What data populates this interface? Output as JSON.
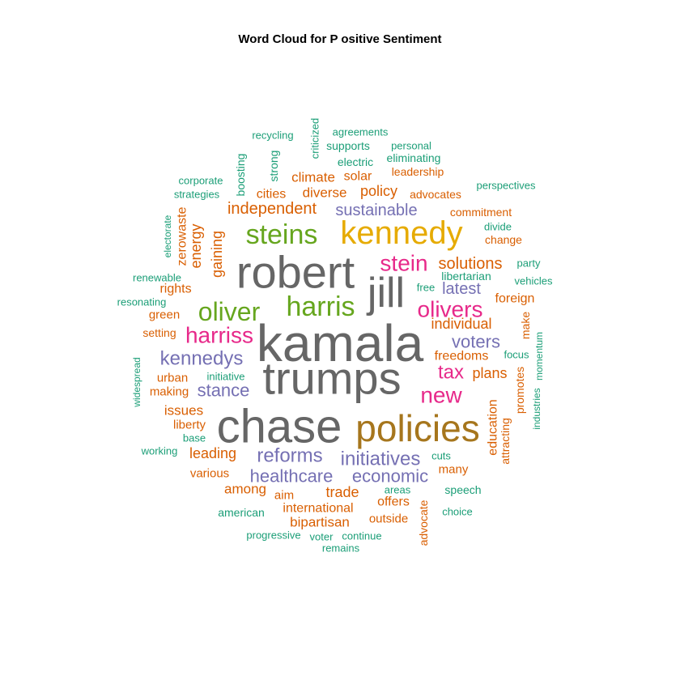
{
  "chart_data": {
    "type": "wordcloud",
    "title": "Word Cloud for P ositive Sentiment",
    "colors": {
      "grey": "#666666",
      "gold": "#E6AB02",
      "olive": "#A6761D",
      "green": "#66A61E",
      "magenta": "#E7298A",
      "purple": "#7570B3",
      "orange": "#D95F02",
      "teal": "#1B9E77"
    },
    "words": [
      {
        "text": "kamala",
        "color": "grey"
      },
      {
        "text": "chase",
        "color": "grey"
      },
      {
        "text": "trumps",
        "color": "grey"
      },
      {
        "text": "robert",
        "color": "grey"
      },
      {
        "text": "jill",
        "color": "grey"
      },
      {
        "text": "policies",
        "color": "olive"
      },
      {
        "text": "kennedy",
        "color": "gold"
      },
      {
        "text": "steins",
        "color": "green"
      },
      {
        "text": "harris",
        "color": "green"
      },
      {
        "text": "oliver",
        "color": "green"
      },
      {
        "text": "stein",
        "color": "magenta"
      },
      {
        "text": "olivers",
        "color": "magenta"
      },
      {
        "text": "harriss",
        "color": "magenta"
      },
      {
        "text": "new",
        "color": "magenta"
      },
      {
        "text": "tax",
        "color": "magenta"
      },
      {
        "text": "kennedys",
        "color": "purple"
      },
      {
        "text": "reforms",
        "color": "purple"
      },
      {
        "text": "initiatives",
        "color": "purple"
      },
      {
        "text": "healthcare",
        "color": "purple"
      },
      {
        "text": "economic",
        "color": "purple"
      },
      {
        "text": "voters",
        "color": "purple"
      },
      {
        "text": "stance",
        "color": "purple"
      },
      {
        "text": "sustainable",
        "color": "purple"
      },
      {
        "text": "latest",
        "color": "purple"
      },
      {
        "text": "independent",
        "color": "orange"
      },
      {
        "text": "solutions",
        "color": "orange"
      },
      {
        "text": "individual",
        "color": "orange"
      },
      {
        "text": "plans",
        "color": "orange"
      },
      {
        "text": "policy",
        "color": "orange"
      },
      {
        "text": "diverse",
        "color": "orange"
      },
      {
        "text": "climate",
        "color": "orange"
      },
      {
        "text": "solar",
        "color": "orange"
      },
      {
        "text": "cities",
        "color": "orange"
      },
      {
        "text": "freedoms",
        "color": "orange"
      },
      {
        "text": "foreign",
        "color": "orange"
      },
      {
        "text": "issues",
        "color": "orange"
      },
      {
        "text": "leading",
        "color": "orange"
      },
      {
        "text": "among",
        "color": "orange"
      },
      {
        "text": "trade",
        "color": "orange"
      },
      {
        "text": "international",
        "color": "orange"
      },
      {
        "text": "bipartisan",
        "color": "orange"
      },
      {
        "text": "offers",
        "color": "orange"
      },
      {
        "text": "outside",
        "color": "orange"
      },
      {
        "text": "many",
        "color": "orange"
      },
      {
        "text": "education",
        "color": "orange"
      },
      {
        "text": "gaining",
        "color": "orange"
      },
      {
        "text": "energy",
        "color": "orange"
      },
      {
        "text": "zerowaste",
        "color": "orange"
      },
      {
        "text": "rights",
        "color": "orange"
      },
      {
        "text": "green",
        "color": "orange"
      },
      {
        "text": "setting",
        "color": "orange"
      },
      {
        "text": "urban",
        "color": "orange"
      },
      {
        "text": "making",
        "color": "orange"
      },
      {
        "text": "liberty",
        "color": "orange"
      },
      {
        "text": "various",
        "color": "orange"
      },
      {
        "text": "aim",
        "color": "orange"
      },
      {
        "text": "advocate",
        "color": "orange"
      },
      {
        "text": "attracting",
        "color": "orange"
      },
      {
        "text": "promotes",
        "color": "orange"
      },
      {
        "text": "make",
        "color": "orange"
      },
      {
        "text": "commitment",
        "color": "orange"
      },
      {
        "text": "change",
        "color": "orange"
      },
      {
        "text": "leadership",
        "color": "orange"
      },
      {
        "text": "advocates",
        "color": "orange"
      },
      {
        "text": "recycling",
        "color": "teal"
      },
      {
        "text": "agreements",
        "color": "teal"
      },
      {
        "text": "criticized",
        "color": "teal"
      },
      {
        "text": "supports",
        "color": "teal"
      },
      {
        "text": "personal",
        "color": "teal"
      },
      {
        "text": "eliminating",
        "color": "teal"
      },
      {
        "text": "electric",
        "color": "teal"
      },
      {
        "text": "strong",
        "color": "teal"
      },
      {
        "text": "boosting",
        "color": "teal"
      },
      {
        "text": "corporate",
        "color": "teal"
      },
      {
        "text": "strategies",
        "color": "teal"
      },
      {
        "text": "perspectives",
        "color": "teal"
      },
      {
        "text": "divide",
        "color": "teal"
      },
      {
        "text": "electorate",
        "color": "teal"
      },
      {
        "text": "renewable",
        "color": "teal"
      },
      {
        "text": "resonating",
        "color": "teal"
      },
      {
        "text": "party",
        "color": "teal"
      },
      {
        "text": "vehicles",
        "color": "teal"
      },
      {
        "text": "libertarian",
        "color": "teal"
      },
      {
        "text": "free",
        "color": "teal"
      },
      {
        "text": "focus",
        "color": "teal"
      },
      {
        "text": "momentum",
        "color": "teal"
      },
      {
        "text": "industries",
        "color": "teal"
      },
      {
        "text": "widespread",
        "color": "teal"
      },
      {
        "text": "initiative",
        "color": "teal"
      },
      {
        "text": "base",
        "color": "teal"
      },
      {
        "text": "working",
        "color": "teal"
      },
      {
        "text": "cuts",
        "color": "teal"
      },
      {
        "text": "areas",
        "color": "teal"
      },
      {
        "text": "speech",
        "color": "teal"
      },
      {
        "text": "choice",
        "color": "teal"
      },
      {
        "text": "american",
        "color": "teal"
      },
      {
        "text": "progressive",
        "color": "teal"
      },
      {
        "text": "voter",
        "color": "teal"
      },
      {
        "text": "continue",
        "color": "teal"
      },
      {
        "text": "remains",
        "color": "teal"
      }
    ]
  }
}
